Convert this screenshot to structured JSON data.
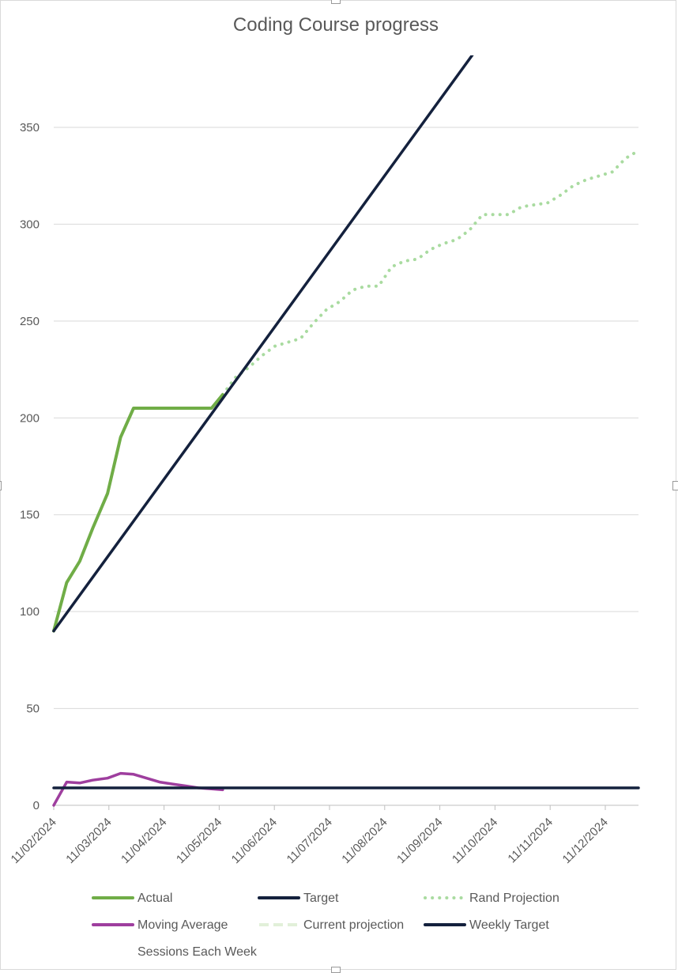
{
  "chart_data": {
    "type": "line",
    "title": "Coding Course progress",
    "xlabel": "",
    "ylabel": "",
    "y_ticks": [
      0,
      50,
      100,
      150,
      200,
      250,
      300,
      350
    ],
    "ylim": [
      0,
      350
    ],
    "x_tick_labels": [
      "11/02/2024",
      "11/03/2024",
      "11/04/2024",
      "11/05/2024",
      "11/06/2024",
      "11/07/2024",
      "11/08/2024",
      "11/09/2024",
      "11/10/2024",
      "11/11/2024",
      "11/12/2024"
    ],
    "grid": true,
    "legend_position": "bottom",
    "series": [
      {
        "name": "Actual",
        "style": "solid",
        "color": "#70ad47",
        "x": [
          "2024-02-11",
          "2024-02-18",
          "2024-02-25",
          "2024-03-03",
          "2024-03-11",
          "2024-03-18",
          "2024-03-25",
          "2024-04-01",
          "2024-04-08",
          "2024-04-15",
          "2024-04-22",
          "2024-04-29",
          "2024-05-06",
          "2024-05-12"
        ],
        "y": [
          90,
          115,
          126,
          143,
          161,
          190,
          205,
          205,
          205,
          205,
          205,
          205,
          205,
          212
        ]
      },
      {
        "name": "Target",
        "style": "solid",
        "color": "#14213d",
        "x": [
          "2024-02-11",
          "2024-09-24"
        ],
        "y": [
          90,
          388
        ]
      },
      {
        "name": "Rand Projection",
        "style": "dotted",
        "color": "#a9dba0",
        "x": [
          "2024-05-12",
          "2024-05-19",
          "2024-05-26",
          "2024-06-02",
          "2024-06-09",
          "2024-06-16",
          "2024-06-23",
          "2024-06-30",
          "2024-07-07",
          "2024-07-14",
          "2024-07-21",
          "2024-07-28",
          "2024-08-04",
          "2024-08-11",
          "2024-08-18",
          "2024-08-25",
          "2024-09-01",
          "2024-09-08",
          "2024-09-15",
          "2024-09-22",
          "2024-09-29",
          "2024-10-06",
          "2024-10-13",
          "2024-10-20",
          "2024-10-27",
          "2024-11-03",
          "2024-11-10",
          "2024-11-17",
          "2024-11-24",
          "2024-12-01",
          "2024-12-08",
          "2024-12-15",
          "2024-12-22"
        ],
        "y": [
          212,
          221,
          226,
          232,
          237,
          239,
          241,
          249,
          256,
          260,
          266,
          268,
          268,
          278,
          281,
          282,
          287,
          290,
          292,
          297,
          305,
          305,
          305,
          309,
          310,
          311,
          315,
          320,
          323,
          325,
          327,
          334,
          338
        ]
      },
      {
        "name": "Moving Average",
        "style": "solid",
        "color": "#9e3e9e",
        "x": [
          "2024-02-11",
          "2024-02-18",
          "2024-02-25",
          "2024-03-03",
          "2024-03-11",
          "2024-03-18",
          "2024-03-25",
          "2024-04-01",
          "2024-04-08",
          "2024-04-15",
          "2024-04-22",
          "2024-04-29",
          "2024-05-06",
          "2024-05-12"
        ],
        "y": [
          0,
          12,
          11.5,
          13,
          14,
          16.5,
          16,
          14,
          12,
          11,
          10,
          9,
          8.5,
          8
        ]
      },
      {
        "name": "Current projection",
        "style": "dashed",
        "color": "#e2f0d9",
        "x": [],
        "y": []
      },
      {
        "name": "Weekly Target",
        "style": "solid",
        "color": "#14213d",
        "x": [
          "2024-02-11",
          "2024-12-22"
        ],
        "y": [
          9,
          9
        ]
      },
      {
        "name": "Sessions Each Week",
        "style": "none",
        "color": "#ffffff",
        "x": [],
        "y": []
      }
    ]
  }
}
